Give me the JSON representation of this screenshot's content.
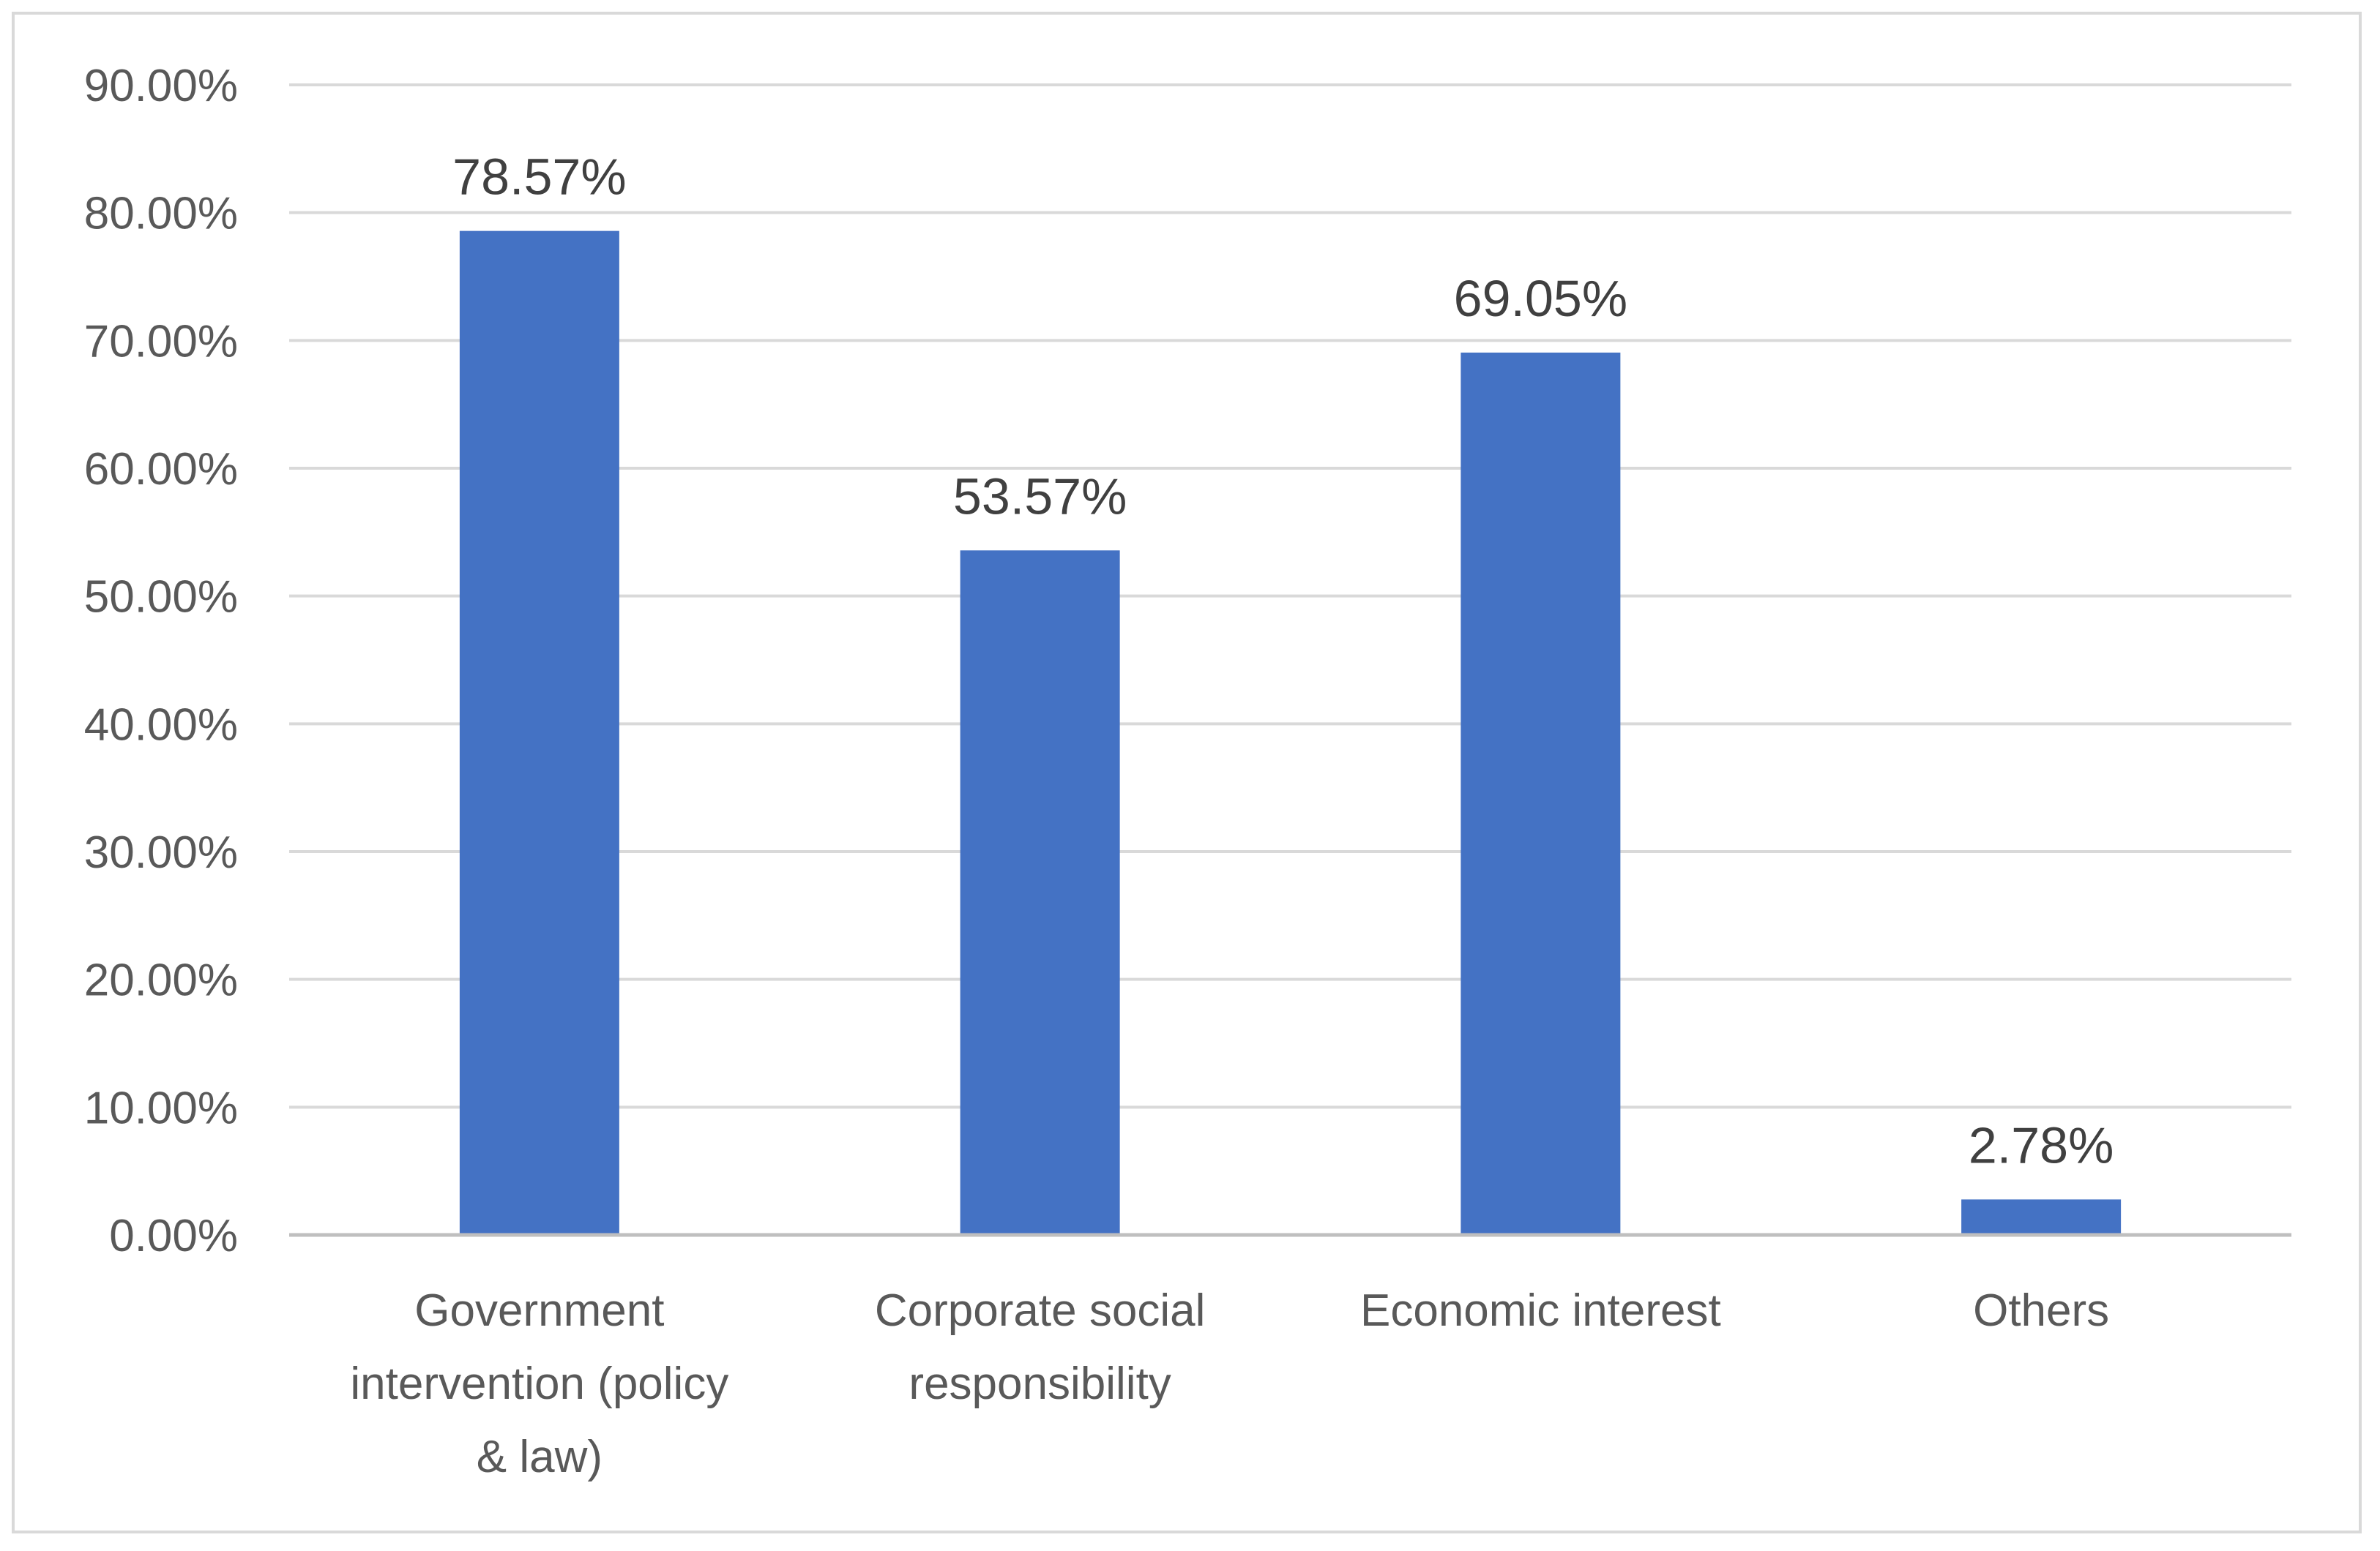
{
  "chart_data": {
    "type": "bar",
    "title": "",
    "xlabel": "",
    "ylabel": "",
    "categories": [
      [
        "Government",
        "intervention (policy",
        "& law)"
      ],
      [
        "Corporate social",
        "responsibility"
      ],
      [
        "Economic interest"
      ],
      [
        "Others"
      ]
    ],
    "values": [
      78.57,
      53.57,
      69.05,
      2.78
    ],
    "data_labels": [
      "78.57%",
      "53.57%",
      "69.05%",
      "2.78%"
    ],
    "ylim": [
      0,
      90
    ],
    "yticks": [
      0,
      10,
      20,
      30,
      40,
      50,
      60,
      70,
      80,
      90
    ],
    "ytick_labels": [
      "0.00%",
      "10.00%",
      "20.00%",
      "30.00%",
      "40.00%",
      "50.00%",
      "60.00%",
      "70.00%",
      "80.00%",
      "90.00%"
    ],
    "grid": true,
    "legend": "none",
    "colors": {
      "bar": "#4472C4",
      "grid": "#d9d9d9",
      "axis": "#bfbfbf",
      "text": "#595959",
      "label": "#404040"
    }
  }
}
